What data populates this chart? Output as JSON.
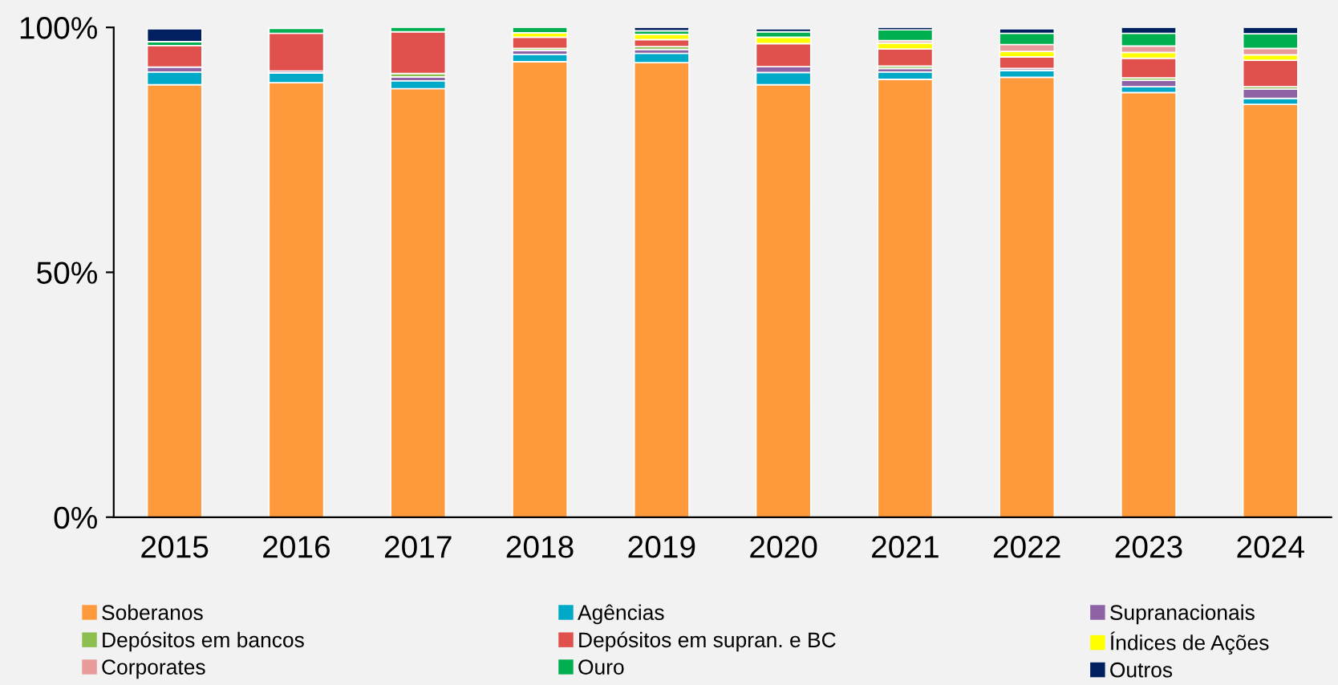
{
  "chart_data": {
    "type": "bar",
    "stacked": true,
    "categories": [
      "2015",
      "2016",
      "2017",
      "2018",
      "2019",
      "2020",
      "2021",
      "2022",
      "2023",
      "2024"
    ],
    "ylim": [
      0,
      100
    ],
    "yticks": [
      {
        "value": 0,
        "label": "0%"
      },
      {
        "value": 50,
        "label": "50%"
      },
      {
        "value": 100,
        "label": "100%"
      }
    ],
    "grid": false,
    "legend": "bottom",
    "series": [
      {
        "name": "Soberanos",
        "color": "#ff9a3c",
        "values": [
          88.3,
          88.7,
          87.5,
          93.0,
          92.8,
          88.3,
          89.4,
          89.8,
          86.7,
          84.3
        ]
      },
      {
        "name": "Agências",
        "color": "#00a9c8",
        "values": [
          2.6,
          2.0,
          1.6,
          1.5,
          1.9,
          2.5,
          1.5,
          1.4,
          1.2,
          1.2
        ]
      },
      {
        "name": "Supranacionais",
        "color": "#8e63a5",
        "values": [
          1.0,
          0.4,
          0.8,
          0.8,
          0.8,
          1.2,
          0.7,
          0.4,
          1.3,
          1.9
        ]
      },
      {
        "name": "Depósitos em bancos",
        "color": "#8cbf4f",
        "values": [
          null,
          null,
          0.7,
          0.4,
          0.6,
          null,
          0.5,
          null,
          0.5,
          0.5
        ]
      },
      {
        "name": "Depósitos em supran. e BC",
        "color": "#e0504d",
        "values": [
          4.4,
          7.7,
          8.5,
          2.3,
          1.4,
          4.7,
          3.5,
          2.4,
          4.0,
          5.4
        ]
      },
      {
        "name": "Índices de Ações",
        "color": "#ffff00",
        "values": [
          0,
          0,
          0,
          0.9,
          1.1,
          1.3,
          1.2,
          1.1,
          1.2,
          1.1
        ]
      },
      {
        "name": "Corporates",
        "color": "#e99a9a",
        "values": [
          0,
          0,
          0,
          0,
          0,
          0,
          0.5,
          1.4,
          1.3,
          1.3
        ]
      },
      {
        "name": "Ouro",
        "color": "#00b050",
        "values": [
          0.8,
          1.0,
          0.9,
          1.1,
          0.7,
          1.1,
          2.2,
          2.3,
          2.6,
          3.0
        ]
      },
      {
        "name": "Outros",
        "color": "#002060",
        "values": [
          2.6,
          0,
          0,
          0,
          0.7,
          0.6,
          0.5,
          0.9,
          1.2,
          1.3
        ]
      }
    ]
  }
}
